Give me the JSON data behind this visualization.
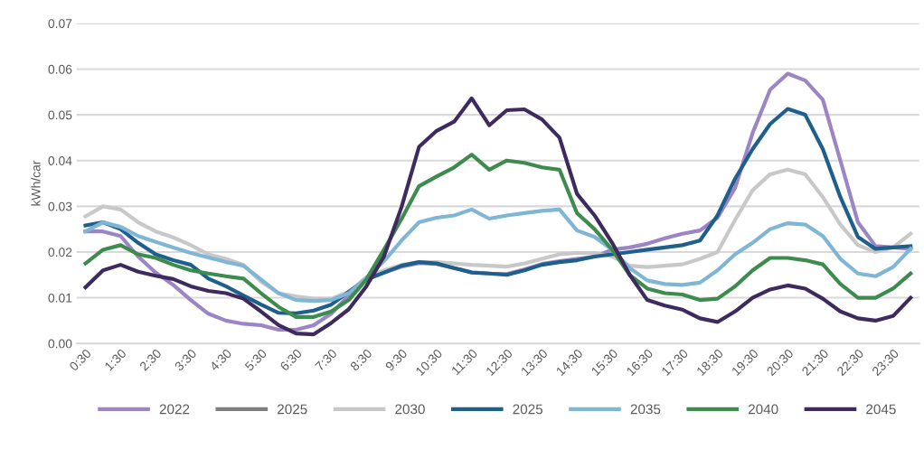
{
  "chart_data": {
    "type": "line",
    "ylabel": "kWh/car",
    "categories": [
      "0:30",
      null,
      "1:30",
      null,
      "2:30",
      null,
      "3:30",
      null,
      "4:30",
      null,
      "5:30",
      null,
      "6:30",
      null,
      "7:30",
      null,
      "8:30",
      null,
      "9:30",
      null,
      "10:30",
      null,
      "11:30",
      null,
      "12:30",
      null,
      "13:30",
      null,
      "14:30",
      null,
      "15:30",
      null,
      "16:30",
      null,
      "17:30",
      null,
      "18:30",
      null,
      "19:30",
      null,
      "20:30",
      null,
      "21:30",
      null,
      "22:30",
      null,
      "23:30",
      null
    ],
    "series": [
      {
        "name": "2022",
        "color": "#9b85c4",
        "values": [
          0.0245,
          0.0245,
          0.0235,
          0.019,
          0.0155,
          0.0128,
          0.0095,
          0.0065,
          0.005,
          0.0043,
          0.004,
          0.003,
          0.003,
          0.004,
          0.0065,
          0.0105,
          0.014,
          0.0155,
          0.0168,
          0.0176,
          0.0174,
          0.0165,
          0.0156,
          0.0153,
          0.0152,
          0.0162,
          0.0174,
          0.018,
          0.0185,
          0.019,
          0.0205,
          0.021,
          0.0218,
          0.023,
          0.024,
          0.0247,
          0.0275,
          0.034,
          0.046,
          0.0555,
          0.059,
          0.0575,
          0.0533,
          0.04,
          0.0265,
          0.0213,
          0.021,
          0.0207
        ]
      },
      {
        "name": "2025",
        "color": "#7f7f7f",
        "values": [
          null,
          null,
          null,
          null,
          null,
          null,
          null,
          null,
          null,
          null,
          null,
          null,
          null,
          null,
          null,
          null,
          null,
          null,
          null,
          null,
          null,
          null,
          null,
          null,
          null,
          null,
          null,
          null,
          null,
          null,
          null,
          null,
          null,
          null,
          null,
          null,
          null,
          null,
          null,
          null,
          null,
          null,
          null,
          null,
          null,
          null,
          null,
          null
        ]
      },
      {
        "name": "2030",
        "color": "#c8c8c8",
        "values": [
          0.0278,
          0.03,
          0.0293,
          0.0265,
          0.0245,
          0.0232,
          0.0215,
          0.0195,
          0.0185,
          0.0172,
          0.0135,
          0.011,
          0.0103,
          0.0098,
          0.0098,
          0.0113,
          0.0145,
          0.016,
          0.0172,
          0.0178,
          0.0178,
          0.0175,
          0.0172,
          0.017,
          0.0168,
          0.0175,
          0.0185,
          0.0195,
          0.0198,
          0.0198,
          0.019,
          0.017,
          0.0167,
          0.017,
          0.0173,
          0.0185,
          0.02,
          0.027,
          0.0335,
          0.037,
          0.038,
          0.037,
          0.032,
          0.026,
          0.0215,
          0.02,
          0.021,
          0.024
        ]
      },
      {
        "name": "2025",
        "color": "#1f5f8b",
        "values": [
          0.0258,
          0.0265,
          0.025,
          0.022,
          0.0195,
          0.0182,
          0.0172,
          0.0142,
          0.0125,
          0.0105,
          0.0085,
          0.0067,
          0.0066,
          0.0072,
          0.0085,
          0.0113,
          0.014,
          0.0155,
          0.017,
          0.0178,
          0.0175,
          0.0165,
          0.0155,
          0.0153,
          0.015,
          0.016,
          0.0172,
          0.0178,
          0.0182,
          0.019,
          0.0195,
          0.02,
          0.0205,
          0.021,
          0.0215,
          0.0225,
          0.028,
          0.036,
          0.0425,
          0.048,
          0.0513,
          0.05,
          0.0425,
          0.032,
          0.0233,
          0.0207,
          0.021,
          0.0213
        ]
      },
      {
        "name": "2035",
        "color": "#7fb6d5",
        "values": [
          0.0245,
          0.0265,
          0.0255,
          0.0235,
          0.0222,
          0.021,
          0.0198,
          0.0188,
          0.0178,
          0.017,
          0.014,
          0.011,
          0.0095,
          0.0093,
          0.0095,
          0.011,
          0.0143,
          0.018,
          0.0225,
          0.0265,
          0.0275,
          0.028,
          0.0293,
          0.0273,
          0.028,
          0.0285,
          0.029,
          0.0293,
          0.0247,
          0.0233,
          0.0205,
          0.0165,
          0.0138,
          0.013,
          0.0128,
          0.0133,
          0.016,
          0.0195,
          0.022,
          0.025,
          0.0263,
          0.026,
          0.0235,
          0.0185,
          0.0153,
          0.0147,
          0.0167,
          0.0207
        ]
      },
      {
        "name": "2040",
        "color": "#3e8b4e",
        "values": [
          0.0175,
          0.0205,
          0.0215,
          0.0195,
          0.0187,
          0.0172,
          0.016,
          0.0153,
          0.0147,
          0.0142,
          0.011,
          0.008,
          0.0058,
          0.0058,
          0.007,
          0.0095,
          0.014,
          0.0205,
          0.0272,
          0.0344,
          0.0365,
          0.0385,
          0.0413,
          0.038,
          0.04,
          0.0395,
          0.0385,
          0.038,
          0.0285,
          0.025,
          0.0205,
          0.015,
          0.012,
          0.011,
          0.0107,
          0.0095,
          0.0098,
          0.0125,
          0.016,
          0.0187,
          0.0187,
          0.0182,
          0.0173,
          0.013,
          0.01,
          0.01,
          0.012,
          0.0153
        ]
      },
      {
        "name": "2045",
        "color": "#3d2a5e",
        "values": [
          0.0123,
          0.016,
          0.0172,
          0.0157,
          0.0148,
          0.0141,
          0.0125,
          0.0115,
          0.011,
          0.0098,
          0.007,
          0.004,
          0.0022,
          0.002,
          0.0045,
          0.0075,
          0.0125,
          0.019,
          0.0298,
          0.043,
          0.0465,
          0.0485,
          0.0536,
          0.0477,
          0.051,
          0.0512,
          0.049,
          0.045,
          0.0327,
          0.028,
          0.022,
          0.015,
          0.0095,
          0.0083,
          0.0074,
          0.0055,
          0.0047,
          0.007,
          0.01,
          0.0118,
          0.0127,
          0.012,
          0.0098,
          0.007,
          0.0055,
          0.005,
          0.006,
          0.01
        ]
      }
    ],
    "ylim": [
      0,
      0.07
    ],
    "yticks": [
      {
        "value": 0,
        "label": "0.00"
      },
      {
        "value": 0.01,
        "label": "0.01"
      },
      {
        "value": 0.02,
        "label": "0.02"
      },
      {
        "value": 0.03,
        "label": "0.03"
      },
      {
        "value": 0.04,
        "label": "0.04"
      },
      {
        "value": 0.05,
        "label": "0.05"
      },
      {
        "value": 0.06,
        "label": "0.06"
      },
      {
        "value": 0.07,
        "label": "0.07"
      }
    ],
    "grid": "y",
    "legend": "bottom",
    "marker": "none",
    "line_style": "solid"
  }
}
